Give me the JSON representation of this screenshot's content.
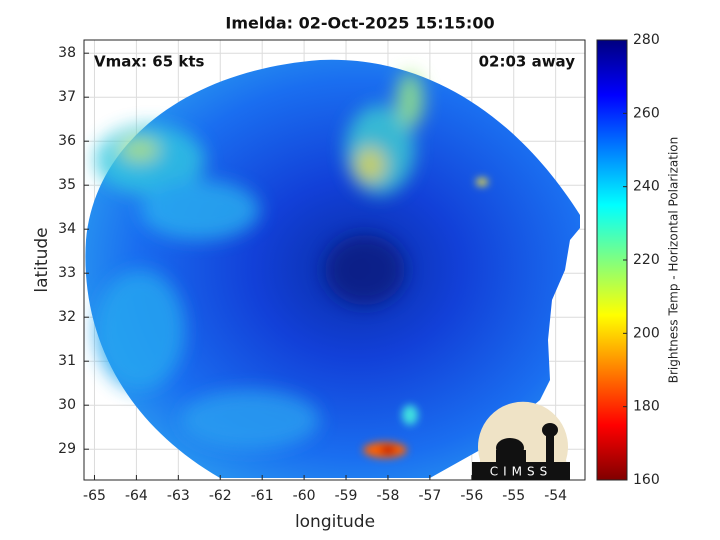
{
  "chart_data": {
    "type": "image",
    "title": "Imelda: 02-Oct-2025 15:15:00",
    "annotations": [
      "Vmax: 65 kts",
      "02:03 away"
    ],
    "xlabel": "longitude",
    "ylabel": "latitude",
    "xlim": [
      -65.25,
      -53.3
    ],
    "xticks": [
      -65,
      -64,
      -63,
      -62,
      -61,
      -60,
      -59,
      -58,
      -57,
      -56,
      -55,
      -54
    ],
    "ylim": [
      28.3,
      38.3
    ],
    "yticks": [
      29,
      30,
      31,
      32,
      33,
      34,
      35,
      36,
      37,
      38
    ],
    "grid": true,
    "colorbar": {
      "label": "Brightness Temp - Horizontal Polarization",
      "lim": [
        160,
        280
      ],
      "ticks": [
        160,
        180,
        200,
        220,
        240,
        260,
        280
      ],
      "colormap": [
        "#800000",
        "#ff0000",
        "#ff8000",
        "#ffff00",
        "#80ff80",
        "#00ffff",
        "#0080ff",
        "#0000ff",
        "#000080"
      ]
    },
    "logo": "CIMSS"
  }
}
